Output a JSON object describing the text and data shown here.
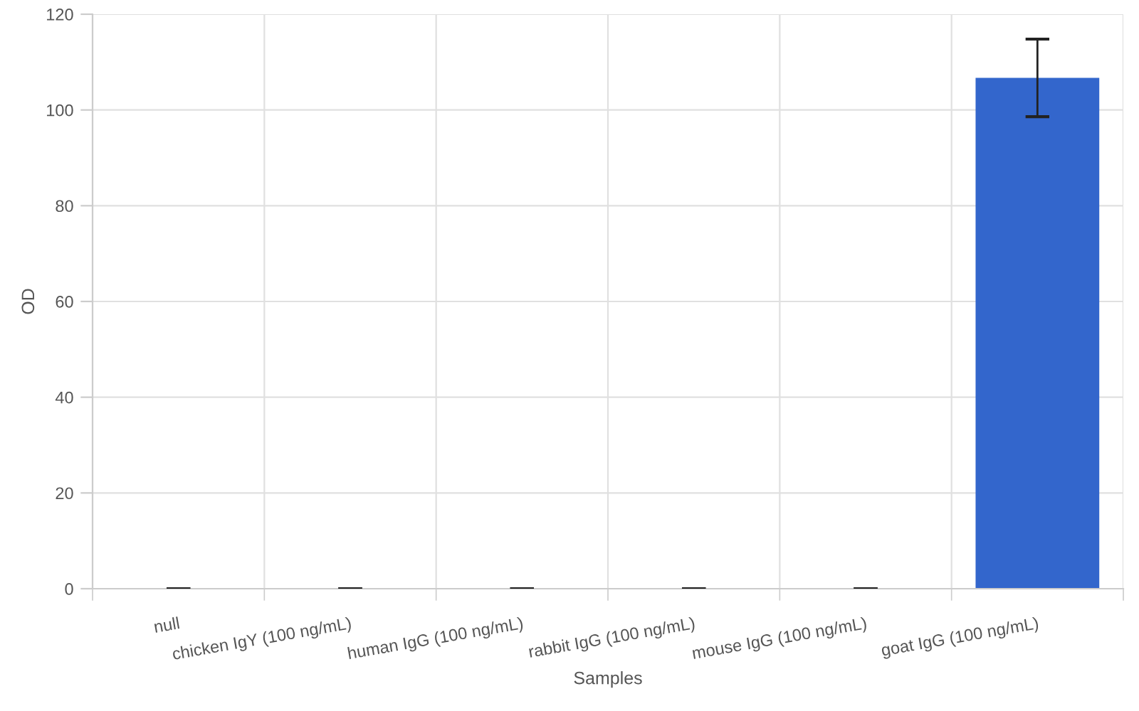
{
  "chart_data": {
    "type": "bar",
    "xlabel": "Samples",
    "ylabel": "OD",
    "categories": [
      "null",
      "chicken IgY (100 ng/mL)",
      "human IgG (100 ng/mL)",
      "rabbit IgG (100 ng/mL)",
      "mouse IgG (100 ng/mL)",
      "goat IgG (100 ng/mL)"
    ],
    "values": [
      0,
      0,
      0,
      0,
      0,
      106.7
    ],
    "errors": [
      0,
      0,
      0,
      0,
      0,
      8.1
    ],
    "color": "#3366cc",
    "ylim": [
      0,
      120
    ],
    "yticks": [
      0,
      20,
      40,
      60,
      80,
      100,
      120
    ],
    "grid": true
  }
}
